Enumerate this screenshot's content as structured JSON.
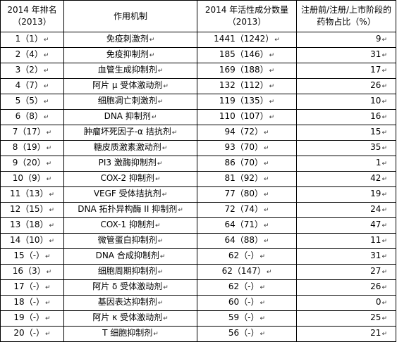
{
  "table": {
    "headers": [
      "2014 年排名\n（2013）",
      "作用机制",
      "2014 年活性成分数量（2013）",
      "注册前/注册/上市阶段的药物占比（%）"
    ],
    "mark": "↵",
    "rows": [
      {
        "rank": "1（1）",
        "mechanism": "免疫刺激剂",
        "count": "1441（1242）",
        "pct": "9"
      },
      {
        "rank": "2（4）",
        "mechanism": "免疫抑制剂",
        "count": "185（146）",
        "pct": "31"
      },
      {
        "rank": "3（2）",
        "mechanism": "血管生成抑制剂",
        "count": "169（188）",
        "pct": "17"
      },
      {
        "rank": "4（7）",
        "mechanism": "阿片 μ 受体激动剂",
        "count": "132（112）",
        "pct": "26"
      },
      {
        "rank": "5（5）",
        "mechanism": "细胞凋亡刺激剂",
        "count": "119（135）",
        "pct": "10"
      },
      {
        "rank": "6（8）",
        "mechanism": "DNA 抑制剂",
        "count": "110（107）",
        "pct": "16"
      },
      {
        "rank": "7（17）",
        "mechanism": "肿瘤坏死因子-α 拮抗剂",
        "count": "94（72）",
        "pct": "15"
      },
      {
        "rank": "8（19）",
        "mechanism": "糖皮质激素激动剂",
        "count": "93（70）",
        "pct": "35"
      },
      {
        "rank": "9（20）",
        "mechanism": "PI3 激酶抑制剂",
        "count": "86（70）",
        "pct": "1"
      },
      {
        "rank": "10（9）",
        "mechanism": "COX-2 抑制剂",
        "count": "81（92）",
        "pct": "42"
      },
      {
        "rank": "11（13）",
        "mechanism": "VEGF 受体拮抗剂",
        "count": "77（80）",
        "pct": "19"
      },
      {
        "rank": "12（15）",
        "mechanism": "DNA 拓扑异构酶 II 抑制剂",
        "count": "72（74）",
        "pct": "24"
      },
      {
        "rank": "13（18）",
        "mechanism": "COX-1 抑制剂",
        "count": "64（71）",
        "pct": "47"
      },
      {
        "rank": "14（10）",
        "mechanism": "微管蛋白抑制剂",
        "count": "64（88）",
        "pct": "11"
      },
      {
        "rank": "15（-）",
        "mechanism": "DNA 合成抑制剂",
        "count": "62（-）",
        "pct": "31"
      },
      {
        "rank": "16（3）",
        "mechanism": "细胞周期抑制剂",
        "count": "62（147）",
        "pct": "27"
      },
      {
        "rank": "17（-）",
        "mechanism": "阿片 δ 受体激动剂",
        "count": "62（-）",
        "pct": "26"
      },
      {
        "rank": "18（-）",
        "mechanism": "基因表达抑制剂",
        "count": "60（-）",
        "pct": "0"
      },
      {
        "rank": "19（-）",
        "mechanism": "阿片 κ 受体激动剂",
        "count": "59（-）",
        "pct": "25"
      },
      {
        "rank": "20（-）",
        "mechanism": "T 细胞抑制剂",
        "count": "56（-）",
        "pct": "21"
      }
    ]
  }
}
